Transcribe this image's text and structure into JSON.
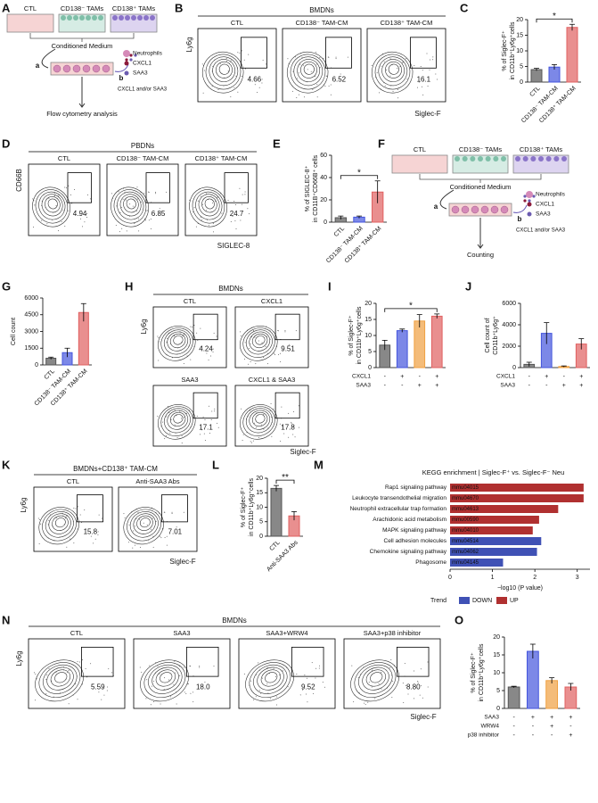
{
  "panels": {
    "A": {
      "letter": "A",
      "wells": [
        "CTL",
        "CD138⁻ TAMs",
        "CD138⁺ TAMs"
      ],
      "medium": "Conditioned Medium",
      "legend": [
        "Neutrophils",
        "CXCL1",
        "SAA3"
      ],
      "path_a": "a",
      "path_b": "b",
      "treatment": "CXCL1 and/or SAA3",
      "readout": "Flow cytometry analysis"
    },
    "B": {
      "letter": "B",
      "group": "BMDNs",
      "y_label": "Ly6g",
      "x_label": "Siglec-F",
      "plots": [
        {
          "title": "CTL",
          "gate": "4.66"
        },
        {
          "title": "CD138⁻ TAM-CM",
          "gate": "6.52"
        },
        {
          "title": "CD138⁺ TAM-CM",
          "gate": "16.1"
        }
      ]
    },
    "C": {
      "letter": "C",
      "chart_data": {
        "type": "bar",
        "y_label": [
          "% of Siglec-F⁺",
          "in CD11b⁺Ly6g⁺cells"
        ],
        "categories": [
          "CTL",
          "CD138⁻ TAM-CM",
          "CD138⁺ TAM-CM"
        ],
        "values": [
          4,
          4.8,
          17.5
        ],
        "errors": [
          0.4,
          0.8,
          1
        ],
        "colors": [
          "#555555",
          "#4455dd",
          "#e06060"
        ],
        "ylim": [
          0,
          20
        ],
        "yticks": [
          0,
          5,
          10,
          15,
          20
        ],
        "significance": {
          "label": "*",
          "between": [
            0,
            2
          ]
        }
      }
    },
    "D": {
      "letter": "D",
      "group": "PBDNs",
      "y_label": "CD66B",
      "x_label": "SIGLEC-8",
      "plots": [
        {
          "title": "CTL",
          "gate": "4.94"
        },
        {
          "title": "CD138⁻ TAM-CM",
          "gate": "6.85"
        },
        {
          "title": "CD138⁺ TAM-CM",
          "gate": "24.7"
        }
      ]
    },
    "E": {
      "letter": "E",
      "chart_data": {
        "type": "bar",
        "y_label": [
          "% of SIGLEC-8⁺",
          "in CD11B⁺CD66B⁺ cells"
        ],
        "categories": [
          "CTL",
          "CD138⁻ TAM-CM",
          "CD138⁺ TAM-CM"
        ],
        "values": [
          4,
          4.5,
          27
        ],
        "errors": [
          1.5,
          1,
          10
        ],
        "colors": [
          "#555555",
          "#4455dd",
          "#e06060"
        ],
        "ylim": [
          0,
          60
        ],
        "yticks": [
          0,
          20,
          40,
          60
        ],
        "significance": {
          "label": "*",
          "between": [
            0,
            2
          ]
        }
      }
    },
    "F": {
      "letter": "F",
      "wells": [
        "CTL",
        "CD138⁻ TAMs",
        "CD138⁺ TAMs"
      ],
      "medium": "Conditioned Medium",
      "legend": [
        "Neutrophils",
        "CXCL1",
        "SAA3"
      ],
      "path_a": "a",
      "path_b": "b",
      "treatment": "CXCL1 and/or SAA3",
      "readout": "Counting"
    },
    "G": {
      "letter": "G",
      "chart_data": {
        "type": "bar",
        "y_label": [
          "Cell count"
        ],
        "categories": [
          "CTL",
          "CD138⁻ TAM-CM",
          "CD138⁺ TAM-CM"
        ],
        "values": [
          600,
          1100,
          4700
        ],
        "errors": [
          100,
          400,
          800
        ],
        "colors": [
          "#555555",
          "#4455dd",
          "#e06060"
        ],
        "ylim": [
          0,
          6000
        ],
        "yticks": [
          0,
          1500,
          3000,
          4500,
          6000
        ]
      }
    },
    "H": {
      "letter": "H",
      "group": "BMDNs",
      "y_label": "Ly6g",
      "x_label": "Siglec-F",
      "plots": [
        {
          "title": "CTL",
          "gate": "4.24"
        },
        {
          "title": "CXCL1",
          "gate": "9.51"
        },
        {
          "title": "SAA3",
          "gate": "17.1"
        },
        {
          "title": "CXCL1 & SAA3",
          "gate": "17.8"
        }
      ]
    },
    "I": {
      "letter": "I",
      "chart_data": {
        "type": "bar",
        "y_label": [
          "% of Siglec-F⁺",
          "in CD11b⁺Ly6g⁺cells"
        ],
        "values": [
          7,
          11.5,
          14.5,
          16
        ],
        "errors": [
          1.5,
          0.5,
          2,
          0.7
        ],
        "colors": [
          "#555555",
          "#4455dd",
          "#f0a040",
          "#e06060"
        ],
        "conditions": [
          {
            "name": "CXCL1",
            "signs": [
              "-",
              "+",
              "-",
              "+"
            ]
          },
          {
            "name": "SAA3",
            "signs": [
              "-",
              "-",
              "+",
              "+"
            ]
          }
        ],
        "ylim": [
          0,
          20
        ],
        "yticks": [
          0,
          5,
          10,
          15,
          20
        ],
        "significance": {
          "label": "*",
          "between": [
            0,
            3
          ]
        }
      }
    },
    "J": {
      "letter": "J",
      "chart_data": {
        "type": "bar",
        "y_label": [
          "Cell count of",
          "CD11b⁺Ly6g⁺"
        ],
        "values": [
          300,
          3200,
          100,
          2200
        ],
        "errors": [
          200,
          1000,
          50,
          500
        ],
        "colors": [
          "#555555",
          "#4455dd",
          "#f0a040",
          "#e06060"
        ],
        "conditions": [
          {
            "name": "CXCL1",
            "signs": [
              "-",
              "+",
              "-",
              "+"
            ]
          },
          {
            "name": "SAA3",
            "signs": [
              "-",
              "-",
              "+",
              "+"
            ]
          }
        ],
        "ylim": [
          0,
          6000
        ],
        "yticks": [
          0,
          2000,
          4000,
          6000
        ]
      }
    },
    "K": {
      "letter": "K",
      "group": "BMDNs+CD138⁺ TAM-CM",
      "y_label": "Ly6g",
      "x_label": "Siglec-F",
      "plots": [
        {
          "title": "CTL",
          "gate": "15.8"
        },
        {
          "title": "Anti-SAA3 Abs",
          "gate": "7.01"
        }
      ]
    },
    "L": {
      "letter": "L",
      "chart_data": {
        "type": "bar",
        "y_label": [
          "% of Siglec-F⁺",
          "in CD11b⁺Ly6g⁺cells"
        ],
        "categories": [
          "CTL",
          "Anti-SAA3 Abs"
        ],
        "values": [
          16.5,
          7
        ],
        "errors": [
          1,
          1.5
        ],
        "colors": [
          "#555555",
          "#e06060"
        ],
        "ylim": [
          0,
          20
        ],
        "yticks": [
          0,
          5,
          10,
          15,
          20
        ],
        "significance": {
          "label": "**",
          "between": [
            0,
            1
          ]
        }
      }
    },
    "M": {
      "letter": "M",
      "chart_data": {
        "type": "hbar",
        "title": "KEGG enrichment | Siglec-F⁺ vs. Siglec-F⁻ Neu",
        "categories": [
          "Rap1 signaling pathway",
          "Leukocyte transendothelial migration",
          "Neutrophil extracellular trap formation",
          "Arachidonic acid metabolism",
          "MAPK signaling pathway",
          "Cell adhesion molecules",
          "Chemokine signaling pathway",
          "Phagosome"
        ],
        "ids": [
          "mmu04015",
          "mmu04670",
          "mmu04613",
          "mmu00590",
          "mmu04010",
          "mmu04514",
          "mmu04062",
          "mmu04145"
        ],
        "values": [
          3.15,
          3.15,
          2.55,
          2.1,
          1.95,
          2.15,
          2.05,
          1.25
        ],
        "trend": [
          "UP",
          "UP",
          "UP",
          "UP",
          "UP",
          "DOWN",
          "DOWN",
          "DOWN"
        ],
        "legend_title": "Trend",
        "series": [
          {
            "name": "DOWN",
            "color": "#3f51b5"
          },
          {
            "name": "UP",
            "color": "#b03030"
          }
        ],
        "x_label": "−log10 (P value)",
        "xlim": [
          0,
          3.3
        ],
        "xticks": [
          0,
          1,
          2,
          3
        ]
      }
    },
    "N": {
      "letter": "N",
      "group": "BMDNs",
      "y_label": "Ly6g",
      "x_label": "Siglec-F",
      "plots": [
        {
          "title": "CTL",
          "gate": "5.59"
        },
        {
          "title": "SAA3",
          "gate": "18.0"
        },
        {
          "title": "SAA3+WRW4",
          "gate": "9.52"
        },
        {
          "title": "SAA3+p38 inhibitor",
          "gate": "8.80"
        }
      ]
    },
    "O": {
      "letter": "O",
      "chart_data": {
        "type": "bar",
        "y_label": [
          "% of Siglec-F⁺",
          "in CD11b⁺Ly6g⁺cells"
        ],
        "values": [
          6,
          16,
          7.8,
          6
        ],
        "errors": [
          0.2,
          2,
          0.8,
          1
        ],
        "colors": [
          "#555555",
          "#4455dd",
          "#f0a040",
          "#e06060"
        ],
        "conditions": [
          {
            "name": "SAA3",
            "signs": [
              "-",
              "+",
              "+",
              "+"
            ]
          },
          {
            "name": "WRW4",
            "signs": [
              "-",
              "-",
              "+",
              "-"
            ]
          },
          {
            "name": "p38 inhibitor",
            "signs": [
              "-",
              "-",
              "-",
              "+"
            ]
          }
        ],
        "ylim": [
          0,
          20
        ],
        "yticks": [
          0,
          5,
          10,
          15,
          20
        ]
      }
    }
  }
}
